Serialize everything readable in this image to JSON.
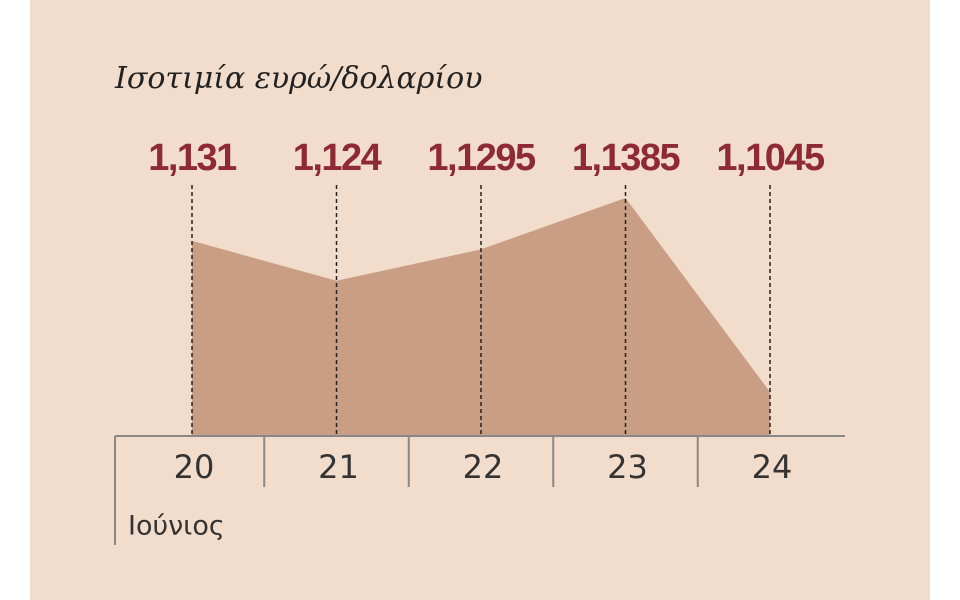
{
  "chart_data": {
    "type": "area",
    "title": "Ισοτιμία ευρώ/δολαρίου",
    "categories": [
      "20",
      "21",
      "22",
      "23",
      "24"
    ],
    "x_sublabel": "Ιούνιος",
    "values": [
      1.131,
      1.124,
      1.1295,
      1.1385,
      1.1045
    ],
    "value_labels": [
      "1,131",
      "1,124",
      "1,1295",
      "1,1385",
      "1,1045"
    ],
    "color": "#c99e85",
    "label_color": "#8e2a31",
    "ylim": [
      1.0968,
      1.1385
    ]
  }
}
